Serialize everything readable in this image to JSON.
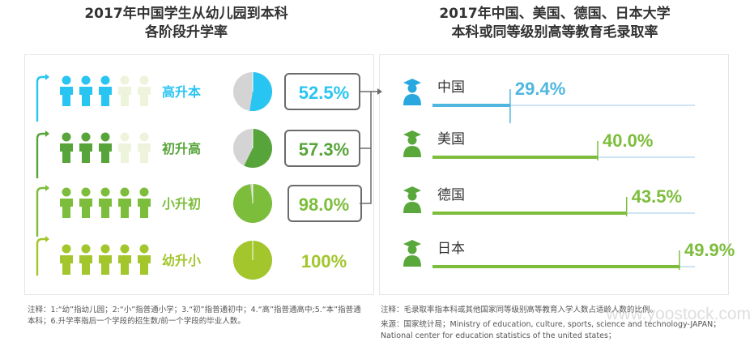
{
  "left_title": [
    "2017年中国学生从幼儿园到本科",
    "各阶段升学率"
  ],
  "right_title": [
    "2017年中国、美国、德国、日本大学",
    "本科或同等级别高等教育毛录取率"
  ],
  "colors": {
    "benke": "#29c5f2",
    "gaozhong": "#57a43a",
    "chuzhong": "#7dbd3c",
    "xiaoxue": "#a2c62c",
    "faded": "#eef4dc",
    "pie_bg": "#d4d4d4",
    "box_border": "#6b6b6b",
    "bar_china": "#4fb6e0",
    "bar_other": "#7dbd3c",
    "axis_line": "#9cc8e8",
    "grad_icon": "#5aa83c",
    "grad_icon_china": "#29a8e0"
  },
  "chart_data": [
    {
      "type": "pie",
      "title": "2017年中国学生从幼儿园到本科各阶段升学率",
      "categories": [
        "高升本",
        "初升高",
        "小升初",
        "幼升小"
      ],
      "values": [
        52.5,
        57.3,
        98.0,
        100
      ],
      "labels": [
        "52.5%",
        "57.3%",
        "98.0%",
        "100%"
      ],
      "icons_filled_of_5": [
        3,
        3,
        5,
        5
      ],
      "icons": "student-icon"
    },
    {
      "type": "bar",
      "title": "2017年中国、美国、德国、日本大学本科或同等级别高等教育毛录取率",
      "categories": [
        "中国",
        "美国",
        "德国",
        "日本"
      ],
      "values": [
        29.4,
        40.0,
        43.5,
        49.9
      ],
      "labels": [
        "29.4%",
        "40.0%",
        "43.5%",
        "49.9%"
      ],
      "icons": "graduate-icon"
    }
  ],
  "notes": {
    "left": "注释：1:“幼”指幼儿园；2:“小”指普通小学；3.“初”指普通初中；4.“高”指普通高中;5.“本”指普通本科；6.升学率指后一个学段的招生数/前一个学段的毕业人数。",
    "right_1": "注释：毛录取率指本科或其他国家同等级别高等教育入学人数占适龄人数的比例。",
    "right_2": "来源：国家统计局；Ministry of education, culture, sports, science and technology-JAPAN；National center for education statistics of the united states；"
  },
  "watermark": "www.yoostock.com"
}
